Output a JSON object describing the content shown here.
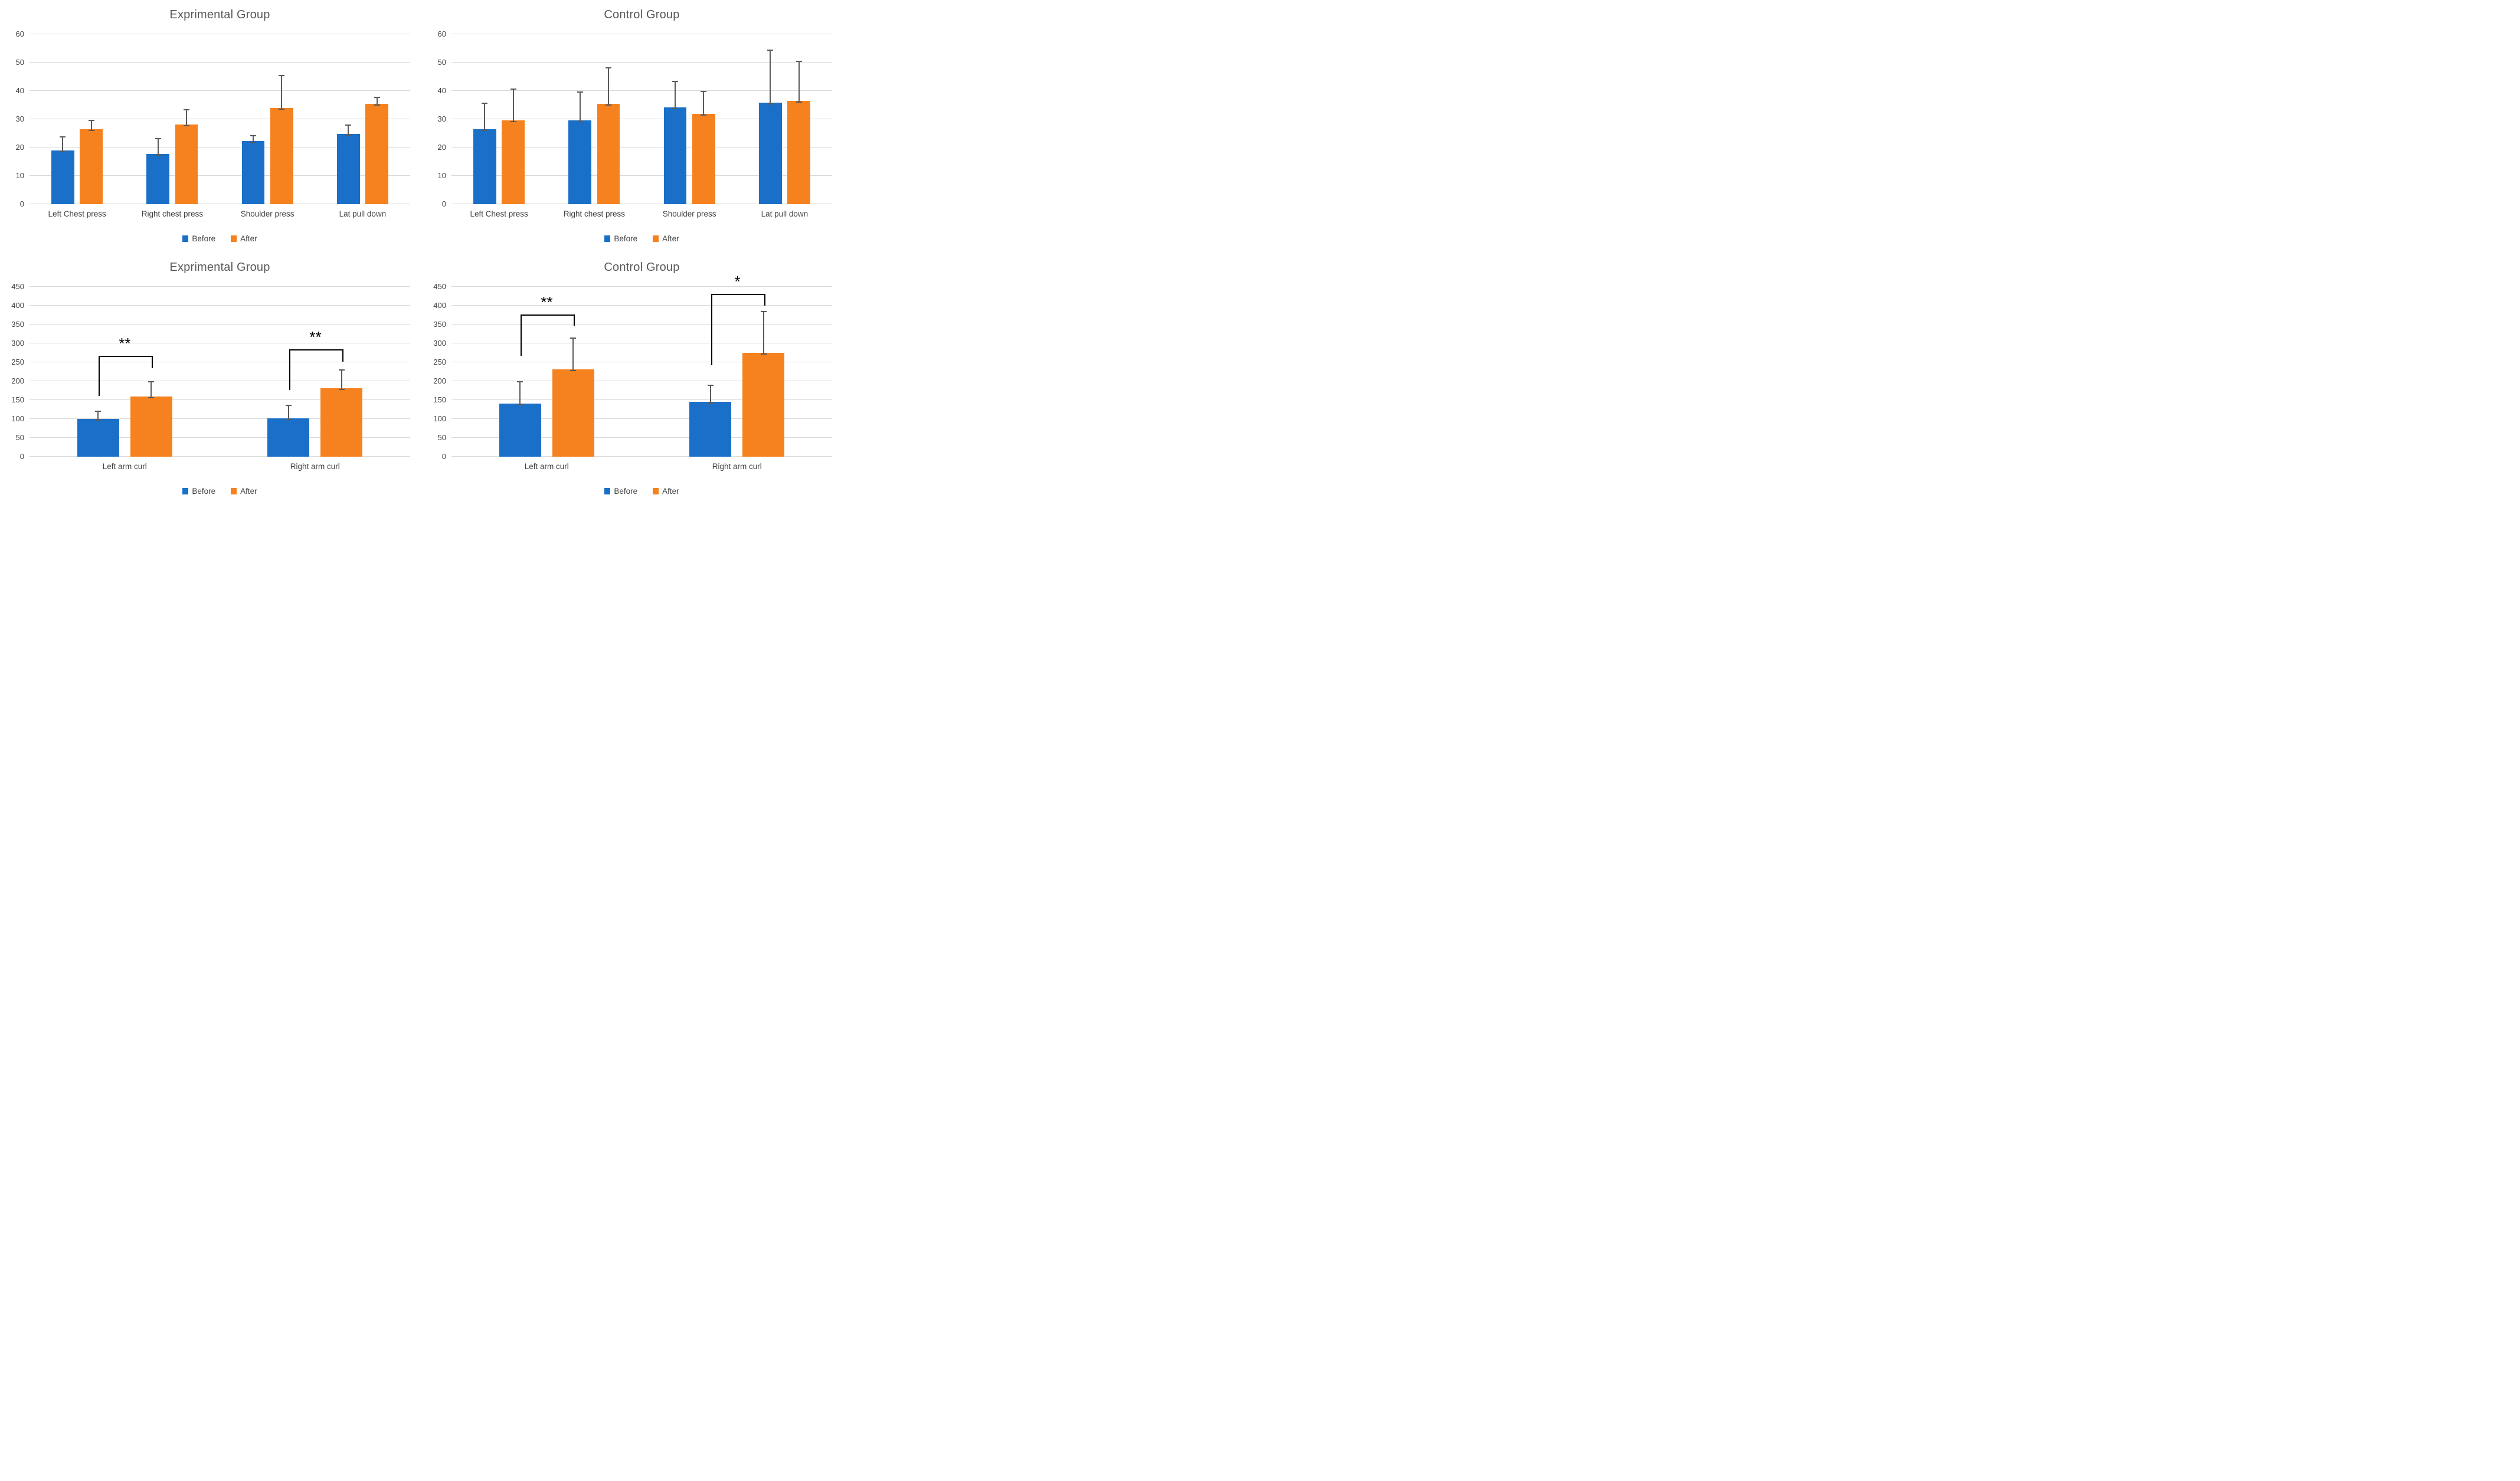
{
  "colors": {
    "before": "#1A70C8",
    "after": "#F5811F",
    "error_bar": "#5A5A5A",
    "gridline": "#D9D9D9",
    "title_text": "#595959",
    "axis_text": "#404040",
    "bracket": "#000000",
    "background": "#FFFFFF"
  },
  "chart_data": [
    {
      "type": "bar",
      "title": "Exprimental Group",
      "categories": [
        "Left Chest press",
        "Right chest press",
        "Shoulder press",
        "Lat pull down"
      ],
      "series": [
        {
          "name": "Before",
          "color_key": "before",
          "values": [
            19,
            17.8,
            22.3,
            24.8
          ],
          "errors": [
            5.5,
            6.2,
            2.7,
            4
          ]
        },
        {
          "name": "After",
          "color_key": "after",
          "values": [
            26.5,
            28.2,
            33.9,
            35.5
          ],
          "errors": [
            4,
            6,
            12.3,
            3
          ]
        }
      ],
      "ylim": [
        0,
        60
      ],
      "ystep": 10,
      "yticks": [
        0,
        10,
        20,
        30,
        40,
        50,
        60
      ],
      "grid": true,
      "legend_position": "bottom",
      "bar_width_pct": 24,
      "bar_gap_pct": 6,
      "brackets": []
    },
    {
      "type": "bar",
      "title": "Control Group",
      "categories": [
        "Left Chest press",
        "Right chest press",
        "Shoulder press",
        "Lat pull down"
      ],
      "series": [
        {
          "name": "Before",
          "color_key": "before",
          "values": [
            26.5,
            29.5,
            34.2,
            35.8
          ],
          "errors": [
            10,
            11,
            10,
            19.4
          ]
        },
        {
          "name": "After",
          "color_key": "after",
          "values": [
            29.5,
            35.5,
            31.8,
            36.5
          ],
          "errors": [
            12,
            13.5,
            8.8,
            14.8
          ]
        }
      ],
      "ylim": [
        0,
        60
      ],
      "ystep": 10,
      "yticks": [
        0,
        10,
        20,
        30,
        40,
        50,
        60
      ],
      "grid": true,
      "legend_position": "bottom",
      "bar_width_pct": 24,
      "bar_gap_pct": 6,
      "brackets": []
    },
    {
      "type": "bar",
      "title": "Exprimental Group",
      "categories": [
        "Left arm curl",
        "Right arm curl"
      ],
      "series": [
        {
          "name": "Before",
          "color_key": "before",
          "values": [
            100,
            102
          ],
          "errors": [
            27,
            40
          ]
        },
        {
          "name": "After",
          "color_key": "after",
          "values": [
            160,
            181
          ],
          "errors": [
            45,
            55
          ]
        }
      ],
      "ylim": [
        0,
        450
      ],
      "ystep": 50,
      "yticks": [
        0,
        50,
        100,
        150,
        200,
        250,
        300,
        350,
        400,
        450
      ],
      "grid": true,
      "legend_position": "bottom",
      "bar_width_pct": 22,
      "bar_gap_pct": 6,
      "brackets": [
        {
          "category": 0,
          "label": "**",
          "y_top": 265,
          "y_left": 160,
          "y_right": 233
        },
        {
          "category": 1,
          "label": "**",
          "y_top": 283,
          "y_left": 175,
          "y_right": 250
        }
      ]
    },
    {
      "type": "bar",
      "title": "Control Group",
      "categories": [
        "Left arm curl",
        "Right arm curl"
      ],
      "series": [
        {
          "name": "Before",
          "color_key": "before",
          "values": [
            141,
            146
          ],
          "errors": [
            64,
            50
          ]
        },
        {
          "name": "After",
          "color_key": "after",
          "values": [
            232,
            275
          ],
          "errors": [
            88,
            115
          ]
        }
      ],
      "ylim": [
        0,
        450
      ],
      "ystep": 50,
      "yticks": [
        0,
        50,
        100,
        150,
        200,
        250,
        300,
        350,
        400,
        450
      ],
      "grid": true,
      "legend_position": "bottom",
      "bar_width_pct": 22,
      "bar_gap_pct": 6,
      "brackets": [
        {
          "category": 0,
          "label": "**",
          "y_top": 375,
          "y_left": 265,
          "y_right": 345
        },
        {
          "category": 1,
          "label": "*",
          "y_top": 430,
          "y_left": 240,
          "y_right": 398
        }
      ]
    }
  ]
}
